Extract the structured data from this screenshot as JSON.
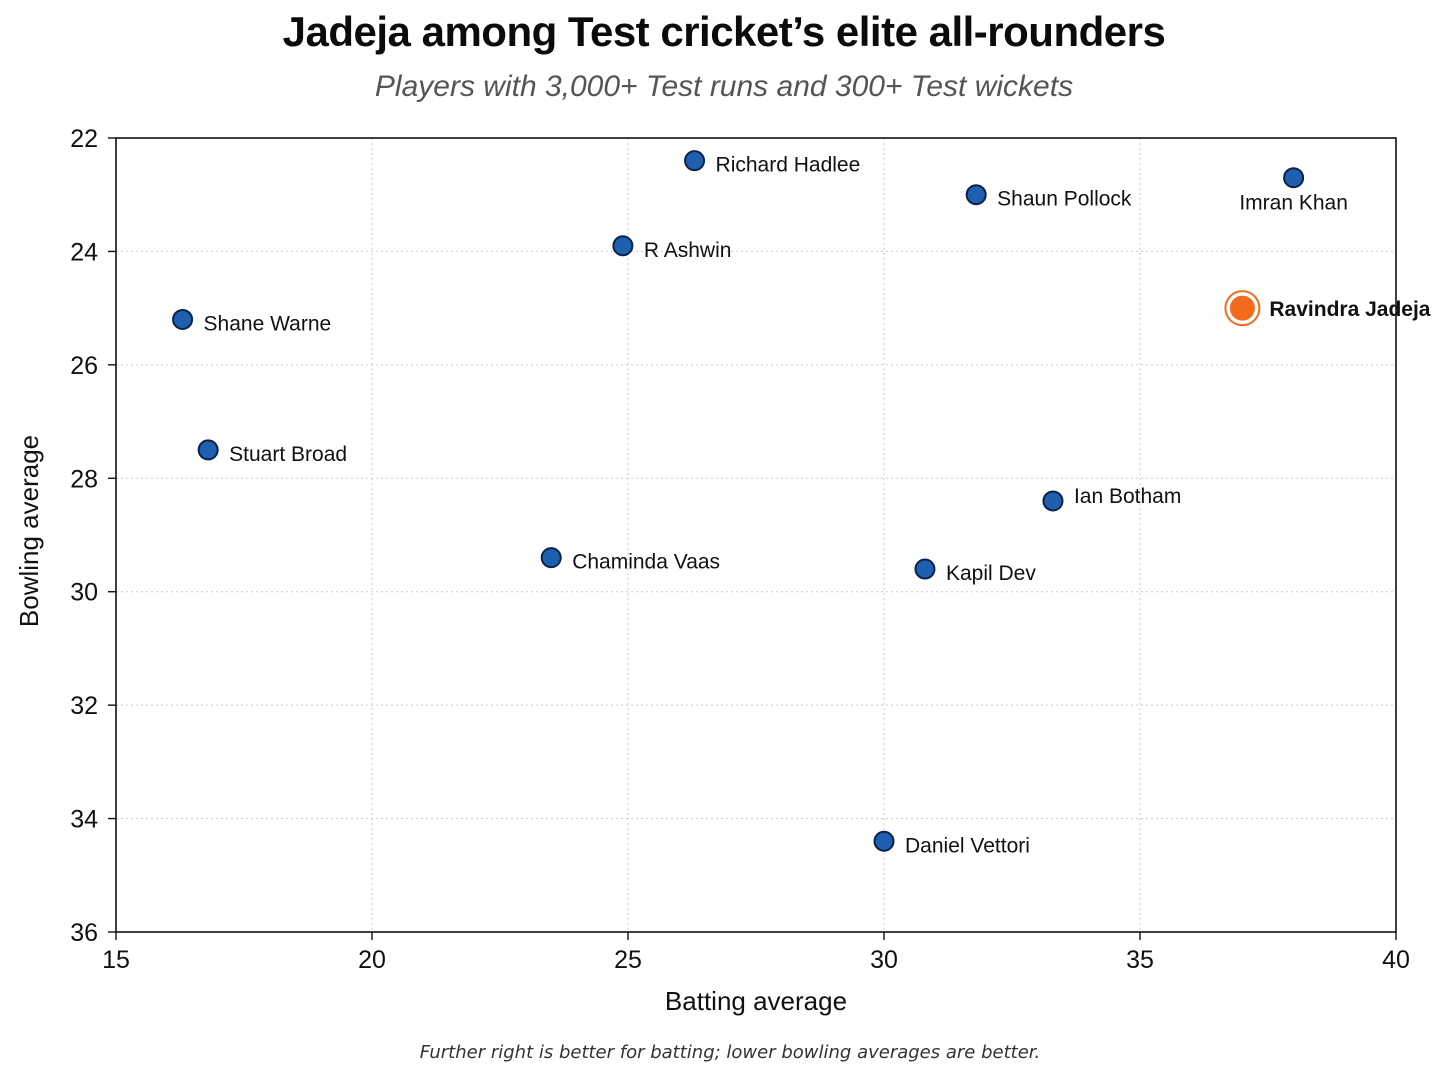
{
  "chart_data": {
    "type": "scatter",
    "title": "Jadeja among Test cricket’s elite all-rounders",
    "subtitle": "Players with 3,000+ Test runs and 300+ Test wickets",
    "xlabel": "Batting average",
    "ylabel": "Bowling average",
    "xlim": [
      15,
      40
    ],
    "ylim": [
      36,
      22
    ],
    "y_inverted": true,
    "x_ticks": [
      15,
      20,
      25,
      30,
      35,
      40
    ],
    "y_ticks": [
      22,
      24,
      26,
      28,
      30,
      32,
      34,
      36
    ],
    "grid": true,
    "note": "Further right is better for batting; lower bowling averages are better.",
    "colors": {
      "point": "#1f5fb0",
      "point_edge": "#0a2246",
      "highlight": "#f26b1d"
    },
    "points": [
      {
        "label": "Richard Hadlee",
        "x": 26.3,
        "y": 22.4,
        "label_pos": "right"
      },
      {
        "label": "Shaun Pollock",
        "x": 31.8,
        "y": 23.0,
        "label_pos": "right"
      },
      {
        "label": "Imran Khan",
        "x": 38.0,
        "y": 22.7,
        "label_pos": "below"
      },
      {
        "label": "R Ashwin",
        "x": 24.9,
        "y": 23.9,
        "label_pos": "right"
      },
      {
        "label": "Ravindra Jadeja",
        "x": 37.0,
        "y": 25.0,
        "label_pos": "right",
        "highlight": true
      },
      {
        "label": "Shane Warne",
        "x": 16.3,
        "y": 25.2,
        "label_pos": "right"
      },
      {
        "label": "Stuart Broad",
        "x": 16.8,
        "y": 27.5,
        "label_pos": "right"
      },
      {
        "label": "Ian Botham",
        "x": 33.3,
        "y": 28.4,
        "label_pos": "above-right"
      },
      {
        "label": "Chaminda Vaas",
        "x": 23.5,
        "y": 29.4,
        "label_pos": "right"
      },
      {
        "label": "Kapil Dev",
        "x": 30.8,
        "y": 29.6,
        "label_pos": "right"
      },
      {
        "label": "Daniel Vettori",
        "x": 30.0,
        "y": 34.4,
        "label_pos": "right"
      }
    ]
  }
}
